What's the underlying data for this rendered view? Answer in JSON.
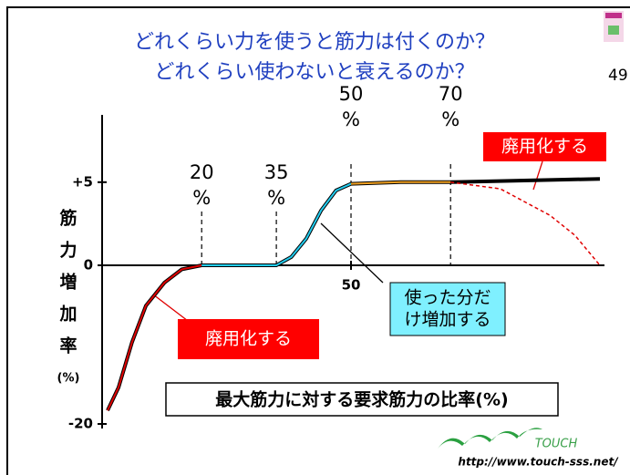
{
  "title": [
    "どれくらい力を使うと筋力は付くのか？",
    "どれくらい使わないと衰えるのか？"
  ],
  "page_number": "49",
  "chart_data": {
    "type": "line",
    "y_label": [
      "筋",
      "力",
      "増",
      "加",
      "率",
      "(%)"
    ],
    "x_label": "最大筋力に対する要求筋力の比率(%)",
    "xlim": [
      0,
      100
    ],
    "xticks": [
      50
    ],
    "ylim": [
      -20,
      8.5
    ],
    "yticks": [
      -20,
      0,
      {
        "value": 5,
        "label": "+5"
      }
    ],
    "series": [
      {
        "color": "#e00000",
        "dash": false,
        "x": [
          1.1,
          3.3,
          6,
          8.8,
          12.5,
          16,
          20
        ],
        "values": [
          -18.3,
          -15.4,
          -9.7,
          -5.1,
          -2.2,
          -0.5,
          0
        ]
      },
      {
        "color": "#22ccee",
        "dash": false,
        "x": [
          20,
          35,
          38,
          41,
          44,
          47,
          50
        ],
        "values": [
          0,
          0,
          0.5,
          1.6,
          3.3,
          4.5,
          4.9
        ]
      },
      {
        "color": "#f0a020",
        "dash": false,
        "x": [
          50,
          60,
          70
        ],
        "values": [
          4.9,
          5,
          5
        ]
      },
      {
        "color": "#000000",
        "dash": false,
        "x": [
          70,
          100
        ],
        "values": [
          5,
          5.2
        ]
      },
      {
        "color": "#e00000",
        "dash": true,
        "x": [
          70,
          80,
          90,
          95,
          100
        ],
        "values": [
          5,
          4.6,
          3,
          1.8,
          0
        ]
      }
    ],
    "reference_lines": [
      {
        "x": 20,
        "label": [
          "20",
          "%"
        ]
      },
      {
        "x": 35,
        "label": [
          "35",
          "%"
        ]
      },
      {
        "x": 50,
        "label": [
          "50",
          "%"
        ]
      },
      {
        "x": 70,
        "label": [
          "70",
          "%"
        ]
      }
    ],
    "callouts": [
      {
        "text": [
          "廃用化する"
        ],
        "style": "red"
      },
      {
        "text": [
          "廃用化する"
        ],
        "style": "red"
      },
      {
        "text": [
          "使った分だ",
          "け増加する"
        ],
        "style": "cyan"
      }
    ]
  },
  "logo": {
    "text": "TOUCH",
    "url": "http://www.touch-sss.net/"
  }
}
